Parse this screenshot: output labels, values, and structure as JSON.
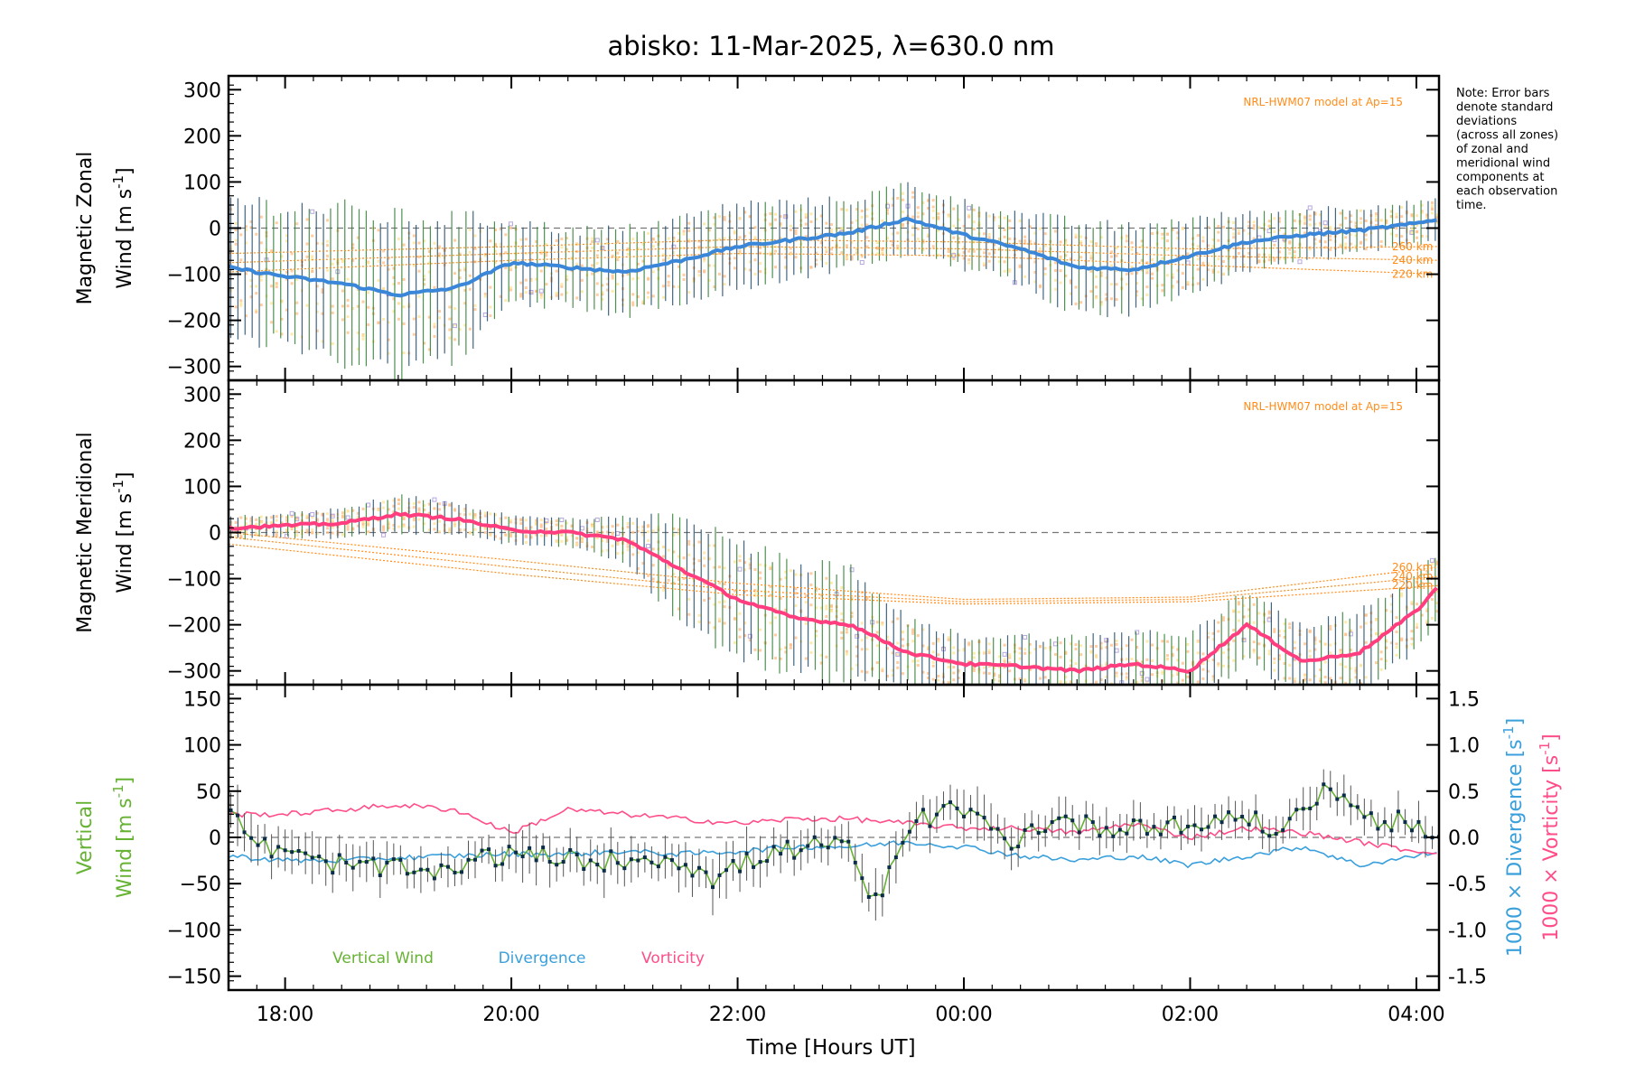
{
  "chart_data": {
    "type": "line",
    "title": "abisko: 11-Mar-2025, λ=630.0 nm",
    "xlabel": "Time [Hours UT]",
    "x_range_hours": [
      17.5,
      28.2
    ],
    "x_ticks": [
      {
        "h": 18,
        "label": "18:00"
      },
      {
        "h": 20,
        "label": "20:00"
      },
      {
        "h": 22,
        "label": "22:00"
      },
      {
        "h": 24,
        "label": "00:00"
      },
      {
        "h": 26,
        "label": "02:00"
      },
      {
        "h": 28,
        "label": "04:00"
      }
    ],
    "note": [
      "Note: Error bars",
      "denote standard",
      "deviations",
      "(across all zones)",
      "of zonal and",
      "meridional wind",
      "components at",
      "each observation",
      "time."
    ],
    "panels": [
      {
        "id": "zonal",
        "ylabel_line1": "Magnetic Zonal",
        "ylabel_line2": "Wind [m s",
        "ylabel_sup": "-1",
        "ylabel_end": "]",
        "ylim": [
          -330,
          330
        ],
        "yticks": [
          -300,
          -200,
          -100,
          0,
          100,
          200,
          300
        ],
        "model_label": "NRL-HWM07 model at Ap=15",
        "model_lines": [
          {
            "label": "260 km",
            "x": [
              17.5,
              20,
              22,
              24,
              26,
              28.2
            ],
            "y": [
              -55,
              -40,
              -25,
              -30,
              -45,
              -40
            ]
          },
          {
            "label": "240 km",
            "x": [
              17.5,
              20,
              22,
              24,
              26,
              28.2
            ],
            "y": [
              -75,
              -55,
              -40,
              -45,
              -60,
              -70
            ]
          },
          {
            "label": "220 km",
            "x": [
              17.5,
              20,
              22,
              24,
              26,
              28.2
            ],
            "y": [
              -95,
              -70,
              -55,
              -60,
              -80,
              -100
            ]
          }
        ],
        "series_x": [
          17.5,
          18.0,
          18.5,
          19.0,
          19.5,
          20.0,
          20.5,
          21.0,
          21.5,
          22.0,
          22.5,
          23.0,
          23.5,
          24.0,
          24.5,
          25.0,
          25.5,
          26.0,
          26.5,
          27.0,
          27.5,
          28.0,
          28.2
        ],
        "series_y": [
          -85,
          -105,
          -120,
          -145,
          -130,
          -75,
          -85,
          -95,
          -70,
          -40,
          -25,
          -10,
          20,
          -15,
          -45,
          -85,
          -90,
          -60,
          -30,
          -15,
          -5,
          10,
          20
        ],
        "series_err": [
          150,
          150,
          160,
          165,
          150,
          90,
          80,
          90,
          90,
          90,
          80,
          70,
          75,
          70,
          75,
          95,
          90,
          80,
          60,
          55,
          50,
          45,
          45
        ]
      },
      {
        "id": "meridional",
        "ylabel_line1": "Magnetic Meridional",
        "ylabel_line2": "Wind [m s",
        "ylabel_sup": "-1",
        "ylabel_end": "]",
        "ylim": [
          -330,
          330
        ],
        "yticks": [
          -300,
          -200,
          -100,
          0,
          100,
          200,
          300
        ],
        "model_label": "NRL-HWM07 model at Ap=15",
        "model_lines": [
          {
            "label": "260 km",
            "x": [
              17.5,
              20,
              22,
              24,
              26,
              28.2
            ],
            "y": [
              0,
              -60,
              -110,
              -145,
              -140,
              -75
            ]
          },
          {
            "label": "240 km",
            "x": [
              17.5,
              20,
              22,
              24,
              26,
              28.2
            ],
            "y": [
              -10,
              -75,
              -125,
              -150,
              -145,
              -95
            ]
          },
          {
            "label": "220 km",
            "x": [
              17.5,
              20,
              22,
              24,
              26,
              28.2
            ],
            "y": [
              -25,
              -90,
              -135,
              -155,
              -150,
              -115
            ]
          }
        ],
        "series_x": [
          17.5,
          18.0,
          18.5,
          19.0,
          19.5,
          20.0,
          20.5,
          21.0,
          21.5,
          22.0,
          22.5,
          23.0,
          23.5,
          24.0,
          24.5,
          25.0,
          25.5,
          26.0,
          26.5,
          27.0,
          27.5,
          28.0,
          28.2
        ],
        "series_y": [
          10,
          15,
          20,
          40,
          30,
          5,
          0,
          -15,
          -80,
          -145,
          -185,
          -200,
          -260,
          -285,
          -290,
          -300,
          -285,
          -300,
          -200,
          -280,
          -260,
          -170,
          -115
        ],
        "series_err": [
          25,
          25,
          30,
          40,
          35,
          30,
          30,
          45,
          110,
          120,
          120,
          115,
          70,
          60,
          65,
          70,
          70,
          75,
          75,
          80,
          85,
          85,
          80
        ]
      },
      {
        "id": "vertical",
        "ylabel_line1": "Vertical",
        "ylabel_line2": "Wind [m s",
        "ylabel_sup": "-1",
        "ylabel_end": "]",
        "ylim": [
          -165,
          165
        ],
        "yticks": [
          -150,
          -100,
          -50,
          0,
          50,
          100,
          150
        ],
        "y2lim": [
          -1.65,
          1.65
        ],
        "y2ticks": [
          -1.5,
          -1.0,
          -0.5,
          0.0,
          0.5,
          1.0,
          1.5
        ],
        "y2label_div": "1000 × Divergence [s",
        "y2label_vor": "1000 × Vorticity [s",
        "y2label_sup": "-1",
        "y2label_end": "]",
        "legend": [
          "Vertical Wind",
          "Divergence",
          "Vorticity"
        ],
        "series": [
          {
            "name": "Vertical Wind",
            "x": [
              17.5,
              17.8,
              18.2,
              18.6,
              19.0,
              19.4,
              19.8,
              20.2,
              20.6,
              21.0,
              21.4,
              21.8,
              22.2,
              22.6,
              23.0,
              23.2,
              23.6,
              24.0,
              24.4,
              24.8,
              25.2,
              25.6,
              26.0,
              26.4,
              26.8,
              27.2,
              27.6,
              28.0,
              28.2
            ],
            "y": [
              25,
              -10,
              -25,
              -30,
              -35,
              -40,
              -20,
              -20,
              -25,
              -25,
              -20,
              -45,
              -20,
              -10,
              -10,
              -75,
              20,
              30,
              -5,
              20,
              10,
              15,
              10,
              25,
              5,
              55,
              20,
              15,
              -10
            ],
            "err": [
              30,
              25,
              25,
              25,
              25,
              20,
              20,
              25,
              25,
              25,
              20,
              30,
              25,
              20,
              20,
              25,
              25,
              25,
              25,
              20,
              20,
              20,
              20,
              20,
              20,
              20,
              20,
              20,
              20
            ]
          },
          {
            "name": "Divergence",
            "x": [
              17.5,
              18.0,
              18.5,
              19.0,
              19.5,
              20.0,
              20.5,
              21.0,
              21.5,
              22.0,
              22.5,
              23.0,
              23.5,
              24.0,
              24.5,
              25.0,
              25.5,
              26.0,
              26.5,
              27.0,
              27.5,
              28.0,
              28.2
            ],
            "y": [
              -0.2,
              -0.25,
              -0.25,
              -0.22,
              -0.2,
              -0.18,
              -0.18,
              -0.15,
              -0.18,
              -0.15,
              -0.1,
              -0.1,
              -0.05,
              -0.1,
              -0.2,
              -0.25,
              -0.2,
              -0.3,
              -0.2,
              -0.1,
              -0.3,
              -0.2,
              -0.15
            ]
          },
          {
            "name": "Vorticity",
            "x": [
              17.5,
              18.0,
              18.5,
              19.0,
              19.5,
              20.0,
              20.5,
              21.0,
              21.5,
              22.0,
              22.5,
              23.0,
              23.5,
              24.0,
              24.5,
              25.0,
              25.5,
              26.0,
              26.5,
              27.0,
              27.5,
              28.0,
              28.2
            ],
            "y": [
              0.25,
              0.25,
              0.3,
              0.35,
              0.3,
              0.05,
              0.3,
              0.25,
              0.2,
              0.15,
              0.2,
              0.2,
              0.15,
              0.1,
              0.1,
              0.05,
              0.15,
              0.0,
              0.1,
              0.05,
              -0.05,
              -0.15,
              -0.15
            ]
          }
        ]
      }
    ]
  },
  "colors": {
    "zonal_line": "#3a86d8",
    "zonal_line_early": "#1e3fd0",
    "meridional_line": "#ff3d7f",
    "error_bar": "#1f4b6b",
    "error_bar_green": "#2e7d32",
    "model": "#ff8c1a",
    "scatter_orange": "#ffc08a",
    "scatter_yellow": "#ffe59a",
    "scatter_purple": "#b7a6e0",
    "vertical": "#66b233",
    "vertical_marker": "#0b2d4a",
    "divergence": "#3aa0dc",
    "vorticity": "#ff4d8a",
    "zero_line": "#777777",
    "axis": "#000000"
  }
}
